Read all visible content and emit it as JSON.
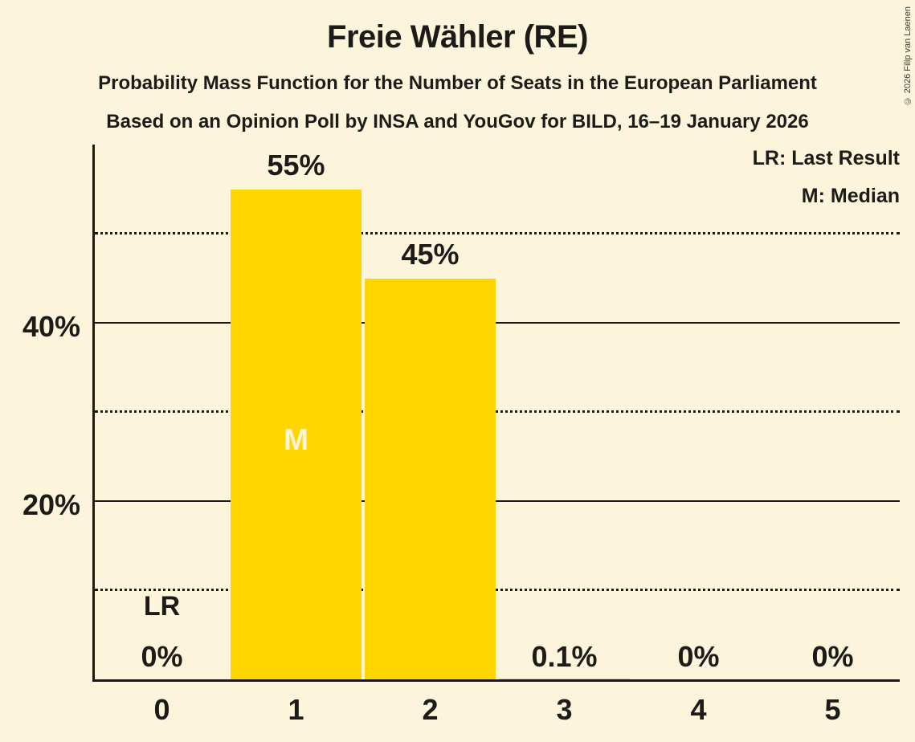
{
  "title": "Freie Wähler (RE)",
  "subtitle1": "Probability Mass Function for the Number of Seats in the European Parliament",
  "subtitle2": "Based on an Opinion Poll by INSA and YouGov for BILD, 16–19 January 2026",
  "copyright": "© 2026 Filip van Laenen",
  "legend": {
    "last_result": "LR: Last Result",
    "median": "M: Median"
  },
  "colors": {
    "background": "#FCF5DC",
    "bar": "#FFD600",
    "text": "#1C1B17",
    "median_label": "#FCF5DC"
  },
  "chart_data": {
    "type": "bar",
    "title": "Freie Wähler (RE)",
    "categories": [
      "0",
      "1",
      "2",
      "3",
      "4",
      "5"
    ],
    "values": [
      0,
      55,
      45,
      0.1,
      0,
      0
    ],
    "value_labels": [
      "0%",
      "55%",
      "45%",
      "0.1%",
      "0%",
      "0%"
    ],
    "xlabel": "",
    "ylabel": "",
    "grid": "horizontal",
    "legend_position": "top-right",
    "y_axis": {
      "max": 60,
      "ticks": [
        {
          "value": 20,
          "label": "20%"
        },
        {
          "value": 40,
          "label": "40%"
        }
      ],
      "gridlines": [
        {
          "value": 10,
          "style": "dotted"
        },
        {
          "value": 20,
          "style": "solid"
        },
        {
          "value": 30,
          "style": "dotted"
        },
        {
          "value": 40,
          "style": "solid"
        },
        {
          "value": 50,
          "style": "dotted"
        }
      ]
    },
    "annotations": {
      "last_result_label": "LR",
      "last_result_seat": "0",
      "median_label": "M",
      "median_seat": "1"
    }
  }
}
